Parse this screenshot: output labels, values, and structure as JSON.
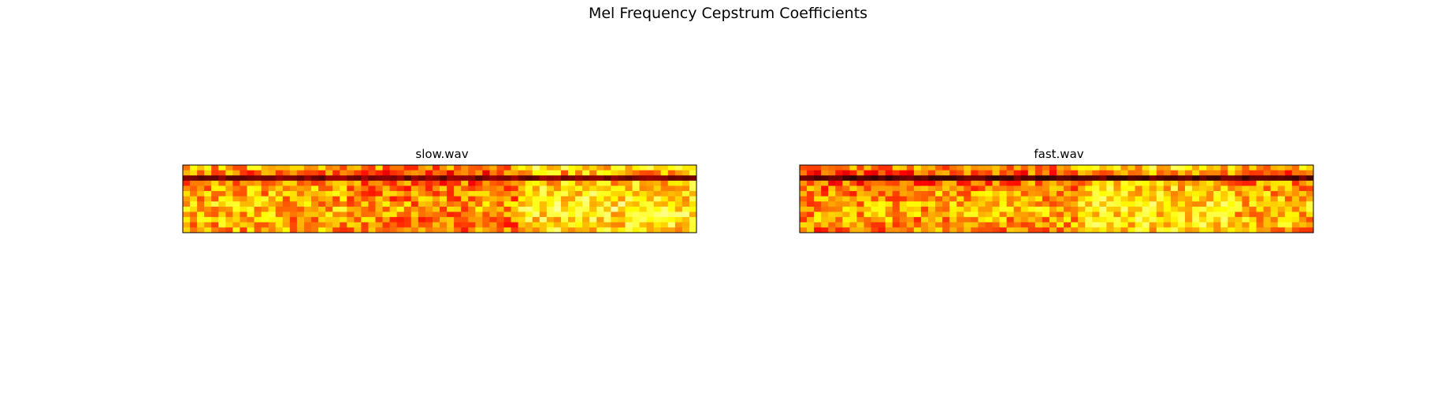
{
  "figure": {
    "title": "Mel Frequency Cepstrum Coefficients",
    "colormap": "hot",
    "axes_visible": false
  },
  "chart_data": [
    {
      "type": "heatmap",
      "title": "slow.wav",
      "rows": 13,
      "cols": 72,
      "value_range": [
        0,
        1
      ],
      "row_profile": [
        0.62,
        0.48,
        0.18,
        0.55,
        0.6,
        0.62,
        0.64,
        0.68,
        0.7,
        0.66,
        0.64,
        0.62,
        0.6
      ],
      "column_sections": [
        {
          "from": 0,
          "to": 13,
          "level": 0.6
        },
        {
          "from": 14,
          "to": 22,
          "level": 0.55
        },
        {
          "from": 23,
          "to": 46,
          "level": 0.45
        },
        {
          "from": 47,
          "to": 71,
          "level": 0.8
        }
      ],
      "seed": 7
    },
    {
      "type": "heatmap",
      "title": "fast.wav",
      "rows": 13,
      "cols": 72,
      "value_range": [
        0,
        1
      ],
      "row_profile": [
        0.6,
        0.45,
        0.12,
        0.48,
        0.58,
        0.62,
        0.64,
        0.66,
        0.68,
        0.66,
        0.64,
        0.62,
        0.58
      ],
      "column_sections": [
        {
          "from": 0,
          "to": 17,
          "level": 0.5
        },
        {
          "from": 18,
          "to": 38,
          "level": 0.55
        },
        {
          "from": 39,
          "to": 60,
          "level": 0.78
        },
        {
          "from": 61,
          "to": 71,
          "level": 0.62
        }
      ],
      "seed": 21
    }
  ]
}
